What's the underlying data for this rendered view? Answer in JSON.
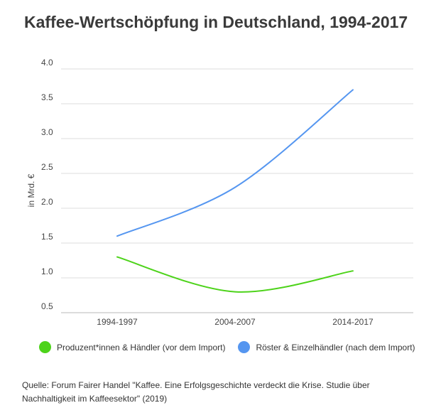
{
  "chart_data": {
    "type": "line",
    "title": "Kaffee-Wertschöpfung in Deutschland, 1994-2017",
    "xlabel": "",
    "ylabel": "in Mrd. €",
    "ylim": [
      0.5,
      4.0
    ],
    "yticks": [
      "0.5",
      "1.0",
      "1.5",
      "2.0",
      "2.5",
      "3.0",
      "3.5",
      "4.0"
    ],
    "categories": [
      "1994-1997",
      "2004-2007",
      "2014-2017"
    ],
    "series": [
      {
        "name": "Produzent*innen & Händler (vor dem Import)",
        "color": "#4dd31a",
        "values": [
          1.3,
          0.8,
          1.1
        ]
      },
      {
        "name": "Röster & Einzelhändler (nach dem Import)",
        "color": "#5596f0",
        "values": [
          1.6,
          2.3,
          3.7
        ]
      }
    ],
    "grid": true,
    "legend": "bottom"
  },
  "source": "Quelle: Forum Fairer Handel \"Kaffee. Eine Erfolgsgeschichte verdeckt die Krise. Studie über Nachhaltigkeit im Kaffeesektor\" (2019)"
}
